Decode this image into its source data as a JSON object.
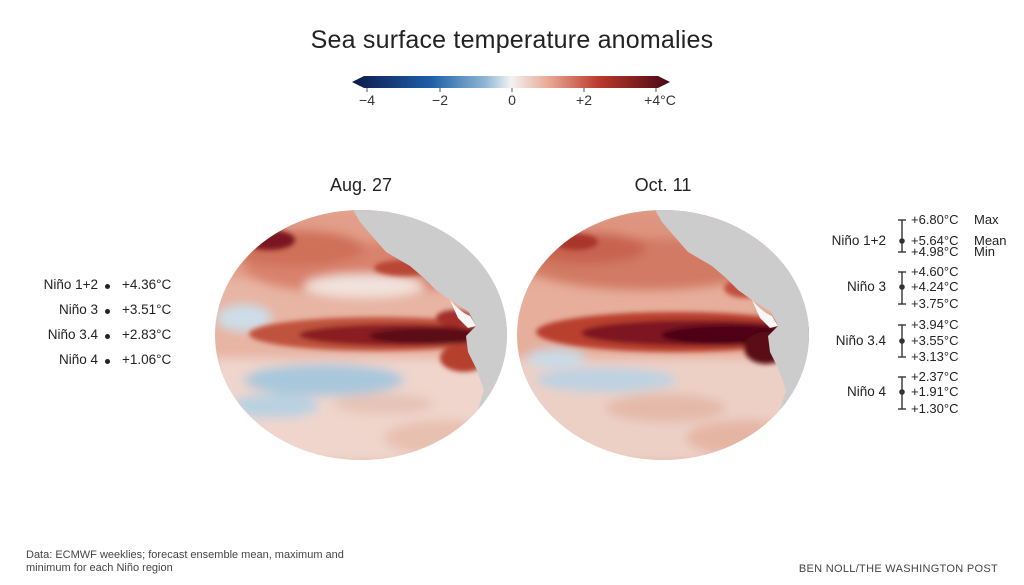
{
  "title": "Sea surface temperature anomalies",
  "colorbar": {
    "ticks": [
      "−4",
      "−2",
      "0",
      "+2",
      "+4°C"
    ],
    "colors": [
      "#0d1a4a",
      "#1f5fa8",
      "#8fb8d4",
      "#f2f2f2",
      "#e8a793",
      "#b9382b",
      "#4a0716"
    ]
  },
  "maps": [
    {
      "label": "Aug. 27"
    },
    {
      "label": "Oct. 11"
    }
  ],
  "observed": {
    "rows": [
      {
        "name": "Niño 1+2",
        "value": "+4.36°C"
      },
      {
        "name": "Niño 3",
        "value": "+3.51°C"
      },
      {
        "name": "Niño 3.4",
        "value": "+2.83°C"
      },
      {
        "name": "Niño 4",
        "value": "+1.06°C"
      }
    ]
  },
  "forecast": {
    "legend": {
      "max": "Max",
      "mean": "Mean",
      "min": "Min"
    },
    "rows": [
      {
        "name": "Niño 1+2",
        "max": "+6.80°C",
        "mean": "+5.64°C",
        "min": "+4.98°C"
      },
      {
        "name": "Niño 3",
        "max": "+4.60°C",
        "mean": "+4.24°C",
        "min": "+3.75°C"
      },
      {
        "name": "Niño 3.4",
        "max": "+3.94°C",
        "mean": "+3.55°C",
        "min": "+3.13°C"
      },
      {
        "name": "Niño 4",
        "max": "+2.37°C",
        "mean": "+1.91°C",
        "min": "+1.30°C"
      }
    ]
  },
  "footer": {
    "source": "Data: ECMWF weeklies; forecast ensemble mean, maximum and minimum for each Niño region",
    "credit": "BEN NOLL/THE WASHINGTON POST"
  }
}
